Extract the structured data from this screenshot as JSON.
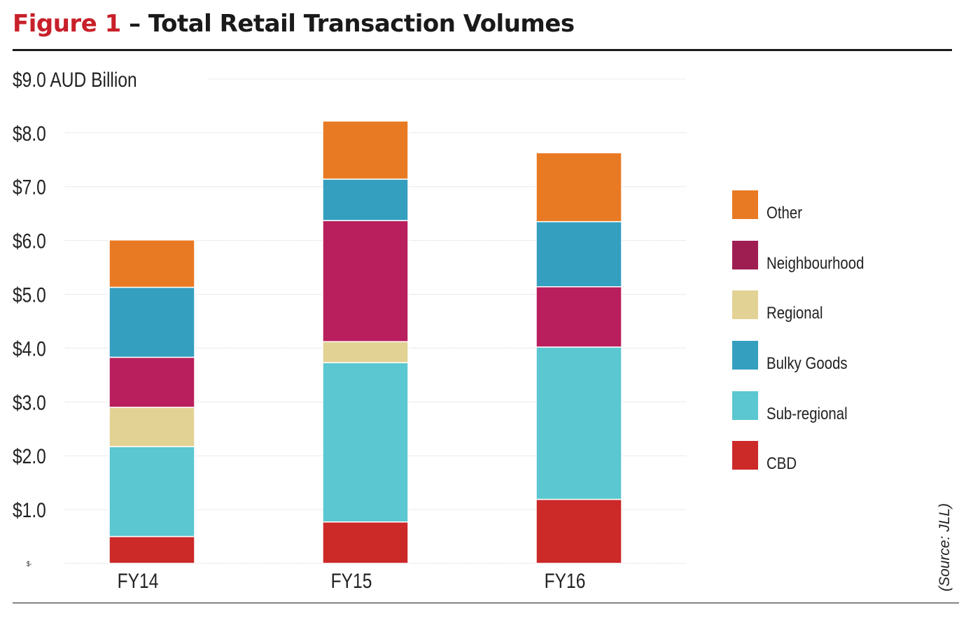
{
  "title": {
    "figure": "Figure 1",
    "text": " – Total Retail Transaction Volumes"
  },
  "source": "(Source: JLL)",
  "chart_data": {
    "type": "bar",
    "stacked": true,
    "title": "Figure 1 – Total Retail Transaction Volumes",
    "ylabel": "$9.0 AUD Billion",
    "ylim": [
      0,
      9
    ],
    "grid": true,
    "y_ticks": [
      "$-",
      "$1.0",
      "$2.0",
      "$3.0",
      "$4.0",
      "$5.0",
      "$6.0",
      "$7.0",
      "$8.0",
      "$9.0 AUD Billion"
    ],
    "categories": [
      "FY14",
      "FY15",
      "FY16"
    ],
    "legend_position": "right",
    "series": [
      {
        "name": "CBD",
        "color": "#cc2929",
        "values": [
          0.5,
          0.77,
          1.19
        ]
      },
      {
        "name": "Sub-regional",
        "color": "#5bc7d0",
        "values": [
          1.67,
          2.96,
          2.83
        ]
      },
      {
        "name": "Regional",
        "color": "#e2d294",
        "values": [
          0.73,
          0.39,
          0.0
        ]
      },
      {
        "name": "Bulky Goods",
        "color": "#349fbf",
        "values": [
          0.0,
          0.0,
          0.0
        ]
      },
      {
        "name": "Neighbourhood",
        "color": "#b91f5c",
        "values": [
          0.93,
          2.25,
          1.12
        ]
      },
      {
        "name": "Bulky Goods",
        "color": "#349fbf",
        "values": [
          1.3,
          0.77,
          1.21
        ]
      },
      {
        "name": "Other",
        "color": "#e97a24",
        "values": [
          0.88,
          1.08,
          1.28
        ]
      }
    ],
    "legend": [
      {
        "name": "Other",
        "color": "#e97a24"
      },
      {
        "name": "Neighbourhood",
        "color": "#9e1e52"
      },
      {
        "name": "Regional",
        "color": "#e2d294"
      },
      {
        "name": "Bulky Goods",
        "color": "#349fbf"
      },
      {
        "name": "Sub-regional",
        "color": "#5bc7d0"
      },
      {
        "name": "CBD",
        "color": "#cc2929"
      }
    ]
  }
}
